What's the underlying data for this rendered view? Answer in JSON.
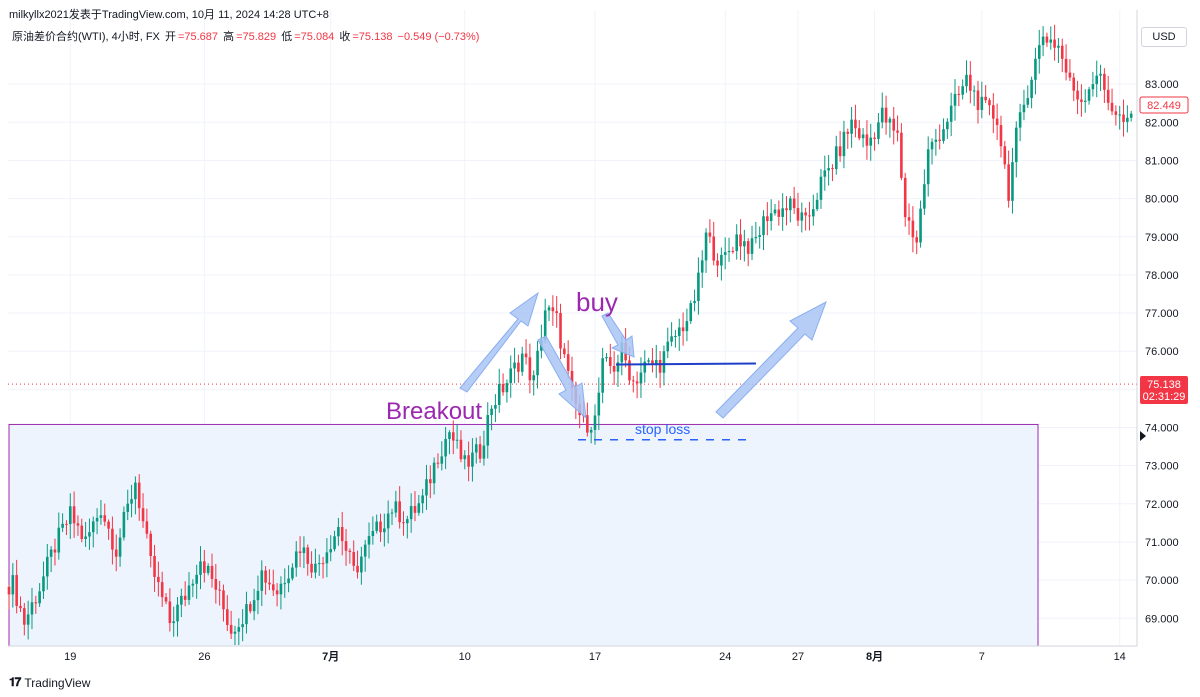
{
  "header": {
    "attribution": "milkyllx2021发表于TradingView.com, 10月 11, 2024 14:28 UTC+8",
    "symbol": "原油差价合约(WTI), 4小时, FX",
    "open_label": "开",
    "open_value": "=75.687",
    "high_label": "高",
    "high_value": "=75.829",
    "low_label": "低",
    "low_value": "=75.084",
    "close_label": "收",
    "close_value": "=75.138",
    "change": "−0.549 (−0.73%)"
  },
  "currency_button": "USD",
  "footer": {
    "brand": "TradingView"
  },
  "colors": {
    "up": "#089981",
    "down": "#f23645",
    "zone_fill": "#eef4fd",
    "zone_border": "#9c27b0",
    "annotation_purple": "#9c27b0",
    "annotation_blue": "#2962ff",
    "arrow_fill": "#a9c4f5"
  },
  "chart_data": {
    "type": "candlestick",
    "x_tick_labels": [
      "19",
      "26",
      "7月",
      "10",
      "17",
      "24",
      "27",
      "8月",
      "7",
      "14"
    ],
    "y_ticks": [
      "69.000",
      "70.000",
      "71.000",
      "72.000",
      "73.000",
      "74.000",
      "75.000",
      "76.000",
      "77.000",
      "78.000",
      "79.000",
      "80.000",
      "81.000",
      "82.000",
      "83.000"
    ],
    "ylim": [
      68.3,
      84.6
    ],
    "last_price": {
      "value": 75.138,
      "label": "75.138",
      "countdown": "02:31:29"
    },
    "high_marker": {
      "value": 82.449,
      "label": "82.449"
    },
    "zone": {
      "top": 74.08,
      "bottom": 68.3
    },
    "horizontal_line": {
      "value": 75.65
    },
    "stop_loss_line": {
      "value": 73.68
    },
    "annotations": [
      "Breakout",
      "buy",
      "stop loss"
    ],
    "anchors": [
      [
        69.9,
        1
      ],
      [
        68.9,
        4
      ],
      [
        69.8,
        8
      ],
      [
        70.9,
        12
      ],
      [
        71.7,
        16
      ],
      [
        71.0,
        20
      ],
      [
        71.9,
        24
      ],
      [
        70.8,
        28
      ],
      [
        72.6,
        33
      ],
      [
        70.4,
        37
      ],
      [
        68.9,
        42
      ],
      [
        69.6,
        46
      ],
      [
        70.6,
        50
      ],
      [
        69.8,
        54
      ],
      [
        68.7,
        58
      ],
      [
        69.2,
        62
      ],
      [
        70.2,
        66
      ],
      [
        69.7,
        70
      ],
      [
        70.9,
        76
      ],
      [
        70.3,
        80
      ],
      [
        71.4,
        86
      ],
      [
        70.2,
        90
      ],
      [
        71.0,
        94
      ],
      [
        71.9,
        100
      ],
      [
        71.6,
        104
      ],
      [
        72.1,
        108
      ],
      [
        73.3,
        112
      ],
      [
        73.9,
        115
      ],
      [
        73.0,
        119
      ],
      [
        73.4,
        123
      ],
      [
        74.6,
        126
      ],
      [
        75.2,
        130
      ],
      [
        75.9,
        134
      ],
      [
        75.2,
        137
      ],
      [
        77.1,
        140
      ],
      [
        76.8,
        143
      ],
      [
        75.8,
        145
      ],
      [
        74.8,
        147
      ],
      [
        74.1,
        150
      ],
      [
        74.2,
        153
      ],
      [
        75.6,
        155
      ],
      [
        75.6,
        158
      ],
      [
        76.0,
        160
      ],
      [
        75.2,
        163
      ],
      [
        75.6,
        166
      ],
      [
        75.7,
        170
      ],
      [
        76.4,
        174
      ],
      [
        77.0,
        178
      ],
      [
        77.8,
        180
      ],
      [
        79.0,
        182
      ],
      [
        78.3,
        186
      ],
      [
        79.0,
        190
      ],
      [
        78.7,
        194
      ],
      [
        79.6,
        198
      ],
      [
        79.8,
        204
      ],
      [
        79.3,
        208
      ],
      [
        80.4,
        212
      ],
      [
        81.1,
        216
      ],
      [
        82.0,
        220
      ],
      [
        81.4,
        224
      ],
      [
        82.2,
        228
      ],
      [
        81.6,
        232
      ],
      [
        79.6,
        234
      ],
      [
        78.9,
        237
      ],
      [
        81.2,
        240
      ],
      [
        81.9,
        244
      ],
      [
        82.7,
        248
      ],
      [
        83.1,
        250
      ],
      [
        82.4,
        254
      ],
      [
        82.1,
        258
      ],
      [
        80.2,
        261
      ],
      [
        81.6,
        263
      ],
      [
        82.9,
        266
      ],
      [
        84.3,
        270
      ],
      [
        84.0,
        274
      ],
      [
        83.0,
        277
      ],
      [
        82.6,
        280
      ],
      [
        83.3,
        284
      ],
      [
        82.6,
        287
      ],
      [
        82.1,
        290
      ],
      [
        81.9,
        292
      ],
      [
        82.3,
        294
      ]
    ]
  }
}
